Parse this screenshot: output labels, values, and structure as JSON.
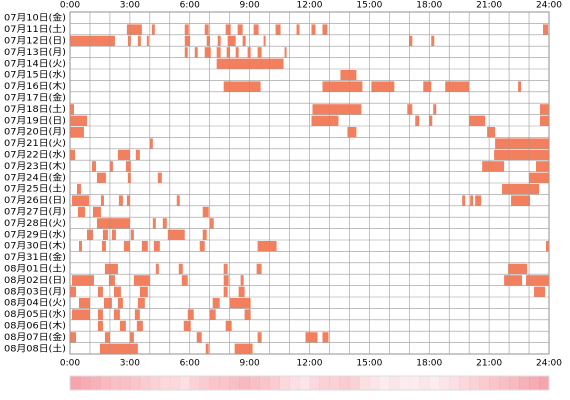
{
  "chart_data": {
    "type": "timeline",
    "xlim": [
      0,
      24
    ],
    "xticks": [
      {
        "value": 0,
        "label": "0:00"
      },
      {
        "value": 3,
        "label": "3:00"
      },
      {
        "value": 6,
        "label": "6:00"
      },
      {
        "value": 9,
        "label": "9:00"
      },
      {
        "value": 12,
        "label": "12:00"
      },
      {
        "value": 15,
        "label": "15:00"
      },
      {
        "value": 18,
        "label": "18:00"
      },
      {
        "value": 21,
        "label": "21:00"
      },
      {
        "value": 24,
        "label": "24:00"
      }
    ],
    "minor_xticks": [
      0,
      1,
      2,
      3,
      4,
      5,
      6,
      7,
      8,
      9,
      10,
      11,
      12,
      13,
      14,
      15,
      16,
      17,
      18,
      19,
      20,
      21,
      22,
      23,
      24
    ],
    "color": "#f27f5e",
    "grid": true,
    "rows": [
      {
        "label": "07月10日(金)",
        "segments": []
      },
      {
        "label": "07月11日(土)",
        "segments": [
          [
            2.85,
            3.6
          ],
          [
            4.1,
            4.25
          ],
          [
            5.75,
            5.95
          ],
          [
            6.75,
            6.95
          ],
          [
            7.8,
            8.05
          ],
          [
            8.4,
            8.65
          ],
          [
            9.2,
            9.45
          ],
          [
            10.3,
            10.55
          ],
          [
            11.35,
            11.5
          ],
          [
            12.1,
            12.3
          ],
          [
            12.65,
            12.9
          ],
          [
            23.7,
            23.95
          ]
        ]
      },
      {
        "label": "07月12日(日)",
        "segments": [
          [
            0,
            2.25
          ],
          [
            2.9,
            3.05
          ],
          [
            3.4,
            3.55
          ],
          [
            3.85,
            3.95
          ],
          [
            5.75,
            6
          ],
          [
            6.85,
            7
          ],
          [
            7.4,
            7.55
          ],
          [
            7.9,
            8.3
          ],
          [
            8.65,
            8.8
          ],
          [
            9.7,
            9.8
          ],
          [
            17,
            17.15
          ],
          [
            18.1,
            18.25
          ]
        ]
      },
      {
        "label": "07月13日(月)",
        "segments": [
          [
            5.75,
            5.9
          ],
          [
            6.25,
            6.4
          ],
          [
            6.75,
            7.05
          ],
          [
            7.35,
            7.55
          ],
          [
            7.85,
            8
          ],
          [
            8.3,
            8.45
          ],
          [
            8.9,
            9.05
          ],
          [
            9.4,
            9.6
          ],
          [
            10.75,
            10.85
          ]
        ]
      },
      {
        "label": "07月14日(火)",
        "segments": [
          [
            7.35,
            10.7
          ]
        ]
      },
      {
        "label": "07月15日(水)",
        "segments": [
          [
            13.55,
            14.35
          ]
        ]
      },
      {
        "label": "07月16日(木)",
        "segments": [
          [
            7.7,
            9.55
          ],
          [
            12.65,
            14.65
          ],
          [
            15.1,
            16.25
          ],
          [
            17.7,
            18.1
          ],
          [
            18.8,
            20
          ],
          [
            22.45,
            22.6
          ]
        ]
      },
      {
        "label": "07月17日(金)",
        "segments": []
      },
      {
        "label": "07月18日(土)",
        "segments": [
          [
            0,
            0.2
          ],
          [
            12.15,
            14.6
          ],
          [
            16.9,
            17.15
          ],
          [
            18.2,
            18.35
          ],
          [
            23.55,
            24
          ]
        ]
      },
      {
        "label": "07月19日(日)",
        "segments": [
          [
            0,
            0.85
          ],
          [
            12.1,
            13.45
          ],
          [
            17.3,
            17.5
          ],
          [
            18,
            18.15
          ],
          [
            20,
            20.8
          ],
          [
            23.55,
            24
          ]
        ]
      },
      {
        "label": "07月20日(月)",
        "segments": [
          [
            0,
            0.7
          ],
          [
            13.9,
            14.35
          ],
          [
            20.9,
            21.3
          ]
        ]
      },
      {
        "label": "07月21日(火)",
        "segments": [
          [
            4,
            4.15
          ],
          [
            21.3,
            24
          ]
        ]
      },
      {
        "label": "07月22日(水)",
        "segments": [
          [
            0,
            0.25
          ],
          [
            2.4,
            3
          ],
          [
            3.3,
            3.5
          ],
          [
            21.25,
            24
          ]
        ]
      },
      {
        "label": "07月23日(木)",
        "segments": [
          [
            1.1,
            1.3
          ],
          [
            2,
            2.15
          ],
          [
            2.8,
            3.05
          ],
          [
            20.65,
            21.75
          ],
          [
            23.35,
            24
          ]
        ]
      },
      {
        "label": "07月24日(金)",
        "segments": [
          [
            1.35,
            1.8
          ],
          [
            2.9,
            3.05
          ],
          [
            4.4,
            4.6
          ],
          [
            23,
            24
          ]
        ]
      },
      {
        "label": "07月25日(土)",
        "segments": [
          [
            0.35,
            0.55
          ],
          [
            21.65,
            23.5
          ]
        ]
      },
      {
        "label": "07月26日(日)",
        "segments": [
          [
            0.1,
            0.95
          ],
          [
            1.55,
            1.7
          ],
          [
            2.45,
            2.65
          ],
          [
            2.85,
            3
          ],
          [
            5.35,
            5.5
          ],
          [
            19.65,
            19.8
          ],
          [
            20.05,
            20.2
          ],
          [
            20.3,
            20.6
          ],
          [
            22.1,
            23.05
          ]
        ]
      },
      {
        "label": "07月27日(月)",
        "segments": [
          [
            0.4,
            0.75
          ],
          [
            1.15,
            1.55
          ],
          [
            6.65,
            6.95
          ]
        ]
      },
      {
        "label": "07月28日(火)",
        "segments": [
          [
            1.35,
            3
          ],
          [
            4.15,
            4.3
          ],
          [
            4.65,
            4.85
          ],
          [
            7,
            7.2
          ]
        ]
      },
      {
        "label": "07月29日(水)",
        "segments": [
          [
            0.85,
            1.15
          ],
          [
            1.65,
            1.9
          ],
          [
            2.1,
            2.3
          ],
          [
            3.05,
            3.2
          ],
          [
            4.9,
            5.75
          ],
          [
            6.65,
            6.85
          ]
        ]
      },
      {
        "label": "07月30日(木)",
        "segments": [
          [
            0.45,
            0.6
          ],
          [
            1.6,
            1.8
          ],
          [
            2.7,
            3
          ],
          [
            3.6,
            3.9
          ],
          [
            4.2,
            4.5
          ],
          [
            6.5,
            6.75
          ],
          [
            9.4,
            10.35
          ],
          [
            23.85,
            24
          ]
        ]
      },
      {
        "label": "07月31日(金)",
        "segments": []
      },
      {
        "label": "08月01日(土)",
        "segments": [
          [
            1.75,
            2.4
          ],
          [
            4.3,
            4.45
          ],
          [
            5.45,
            5.65
          ],
          [
            7.7,
            7.9
          ],
          [
            9.35,
            9.6
          ],
          [
            21.95,
            22.9
          ]
        ]
      },
      {
        "label": "08月02日(日)",
        "segments": [
          [
            0.1,
            1.2
          ],
          [
            1.95,
            2.25
          ],
          [
            3.2,
            4
          ],
          [
            5.6,
            5.9
          ],
          [
            7.7,
            7.95
          ],
          [
            8.55,
            8.7
          ],
          [
            21.75,
            22.65
          ],
          [
            22.85,
            24
          ]
        ]
      },
      {
        "label": "08月03日(月)",
        "segments": [
          [
            0,
            0.3
          ],
          [
            1.4,
            1.65
          ],
          [
            2.2,
            2.55
          ],
          [
            3.5,
            3.9
          ],
          [
            7.7,
            7.9
          ],
          [
            8.45,
            8.75
          ],
          [
            23.25,
            23.8
          ]
        ]
      },
      {
        "label": "08月04日(火)",
        "segments": [
          [
            0.45,
            1
          ],
          [
            1.7,
            2.1
          ],
          [
            2.4,
            2.65
          ],
          [
            3.4,
            3.75
          ],
          [
            7.15,
            7.5
          ],
          [
            8,
            9.05
          ]
        ]
      },
      {
        "label": "08月05日(水)",
        "segments": [
          [
            0.1,
            1
          ],
          [
            1.4,
            1.65
          ],
          [
            2.2,
            2.5
          ],
          [
            3.25,
            3.5
          ],
          [
            5.9,
            6.2
          ],
          [
            7,
            7.3
          ],
          [
            8.75,
            9.05
          ]
        ]
      },
      {
        "label": "08月06日(木)",
        "segments": [
          [
            1.4,
            1.65
          ],
          [
            2.5,
            2.8
          ],
          [
            3.35,
            3.65
          ],
          [
            5.7,
            6.05
          ],
          [
            7.8,
            8.1
          ]
        ]
      },
      {
        "label": "08月07日(金)",
        "segments": [
          [
            0,
            0.3
          ],
          [
            1.75,
            2
          ],
          [
            3,
            3.2
          ],
          [
            6.35,
            6.6
          ],
          [
            9.4,
            9.6
          ],
          [
            11.8,
            12.4
          ],
          [
            12.65,
            12.95
          ]
        ]
      },
      {
        "label": "08月08日(土)",
        "segments": [
          [
            1.5,
            3.4
          ],
          [
            6.8,
            6.95
          ],
          [
            8.25,
            9.15
          ]
        ]
      }
    ],
    "density_color": "#f27f8a",
    "density_lim": [
      0,
      1
    ],
    "density": [
      0.7,
      0.65,
      0.6,
      0.55,
      0.5,
      0.5,
      0.45,
      0.4,
      0.35,
      0.3,
      0.3,
      0.25,
      0.35,
      0.4,
      0.45,
      0.45,
      0.5,
      0.55,
      0.5,
      0.45,
      0.4,
      0.3,
      0.25,
      0.2,
      0.3,
      0.35,
      0.35,
      0.4,
      0.35,
      0.25,
      0.2,
      0.15,
      0.2,
      0.15,
      0.15,
      0.2,
      0.15,
      0.2,
      0.25,
      0.3,
      0.35,
      0.4,
      0.45,
      0.5,
      0.55,
      0.6,
      0.65,
      0.7
    ]
  }
}
